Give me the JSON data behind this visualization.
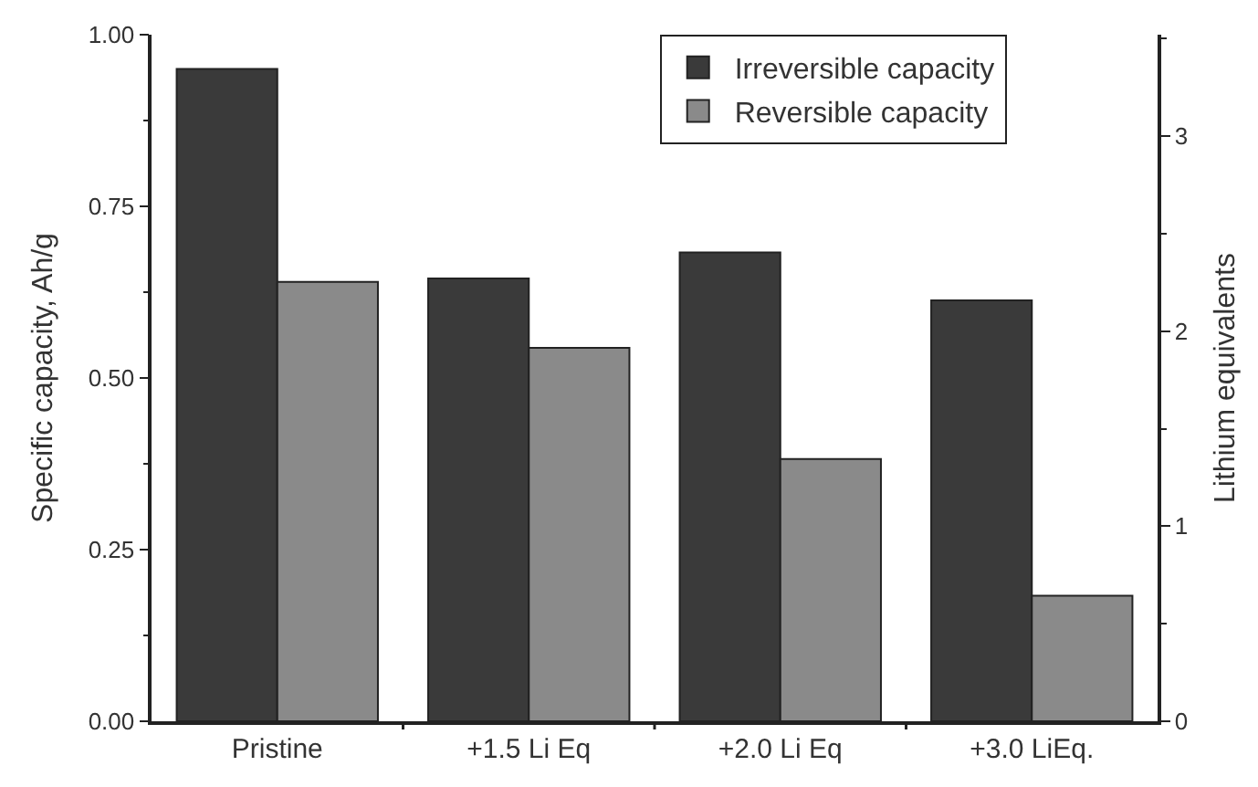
{
  "chart_data": {
    "type": "bar",
    "categories": [
      "Pristine",
      "+1.5 Li Eq",
      "+2.0 Li Eq",
      "+3.0 LiEq."
    ],
    "series": [
      {
        "name": "Irreversible capacity",
        "color": "#3a3a3a",
        "values": [
          0.95,
          0.645,
          0.683,
          0.613
        ]
      },
      {
        "name": "Reversible capacity",
        "color": "#8a8a8a",
        "values": [
          0.64,
          0.544,
          0.382,
          0.183
        ]
      }
    ],
    "ylabel": "Specific capacity, Ah/g",
    "y2label": "Lithium equivalents",
    "ylim": [
      0,
      1
    ],
    "yticks": [
      {
        "value": 0,
        "label": "0.00"
      },
      {
        "value": 0.25,
        "label": "0.25"
      },
      {
        "value": 0.5,
        "label": "0.50"
      },
      {
        "value": 0.75,
        "label": "0.75"
      },
      {
        "value": 1,
        "label": "1.00"
      }
    ],
    "y2lim": [
      0,
      3.52
    ],
    "y2ticks": [
      0,
      1,
      2,
      3
    ],
    "legend": "top right"
  }
}
